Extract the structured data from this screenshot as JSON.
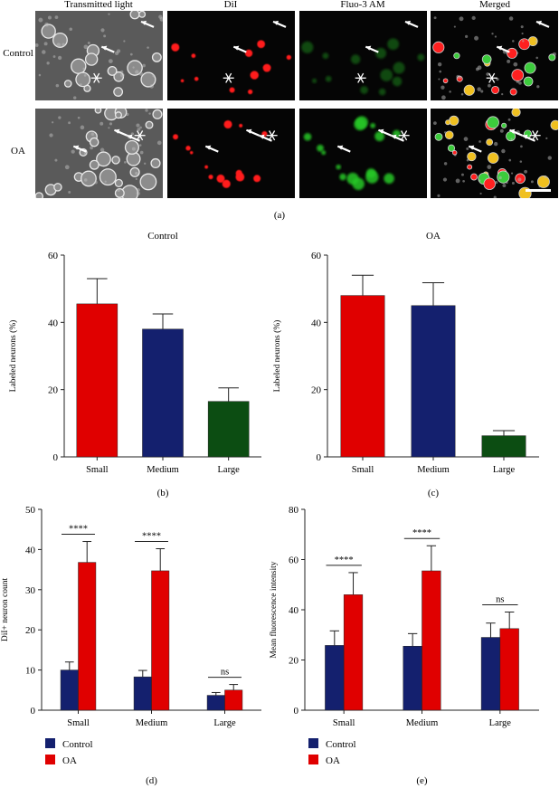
{
  "panel_a": {
    "col_headers": [
      "Transmitted light",
      "DiI",
      "Fluo-3 AM",
      "Merged"
    ],
    "row_labels": [
      "Control",
      "OA"
    ],
    "caption": "(a)"
  },
  "chart_data": [
    {
      "id": "b",
      "type": "bar",
      "title": "Control",
      "ylabel": "Labeled neurons (%)",
      "xlabel": "",
      "caption": "(b)",
      "categories": [
        "Small",
        "Medium",
        "Large"
      ],
      "values": [
        45.5,
        38,
        16.5
      ],
      "errors": [
        7.5,
        4.5,
        4
      ],
      "colors": [
        "#e00000",
        "#14206e",
        "#0c4d12"
      ],
      "ylim": [
        0,
        60
      ],
      "yticks": [
        0,
        20,
        40,
        60
      ],
      "grid": false
    },
    {
      "id": "c",
      "type": "bar",
      "title": "OA",
      "ylabel": "Labeled neurons (%)",
      "xlabel": "",
      "caption": "(c)",
      "categories": [
        "Small",
        "Medium",
        "Large"
      ],
      "values": [
        48,
        45,
        6.3
      ],
      "errors": [
        6,
        6.8,
        1.5
      ],
      "colors": [
        "#e00000",
        "#14206e",
        "#0c4d12"
      ],
      "ylim": [
        0,
        60
      ],
      "yticks": [
        0,
        20,
        40,
        60
      ],
      "grid": false
    },
    {
      "id": "d",
      "type": "bar",
      "title": "",
      "ylabel": "DiI+ neuron count",
      "xlabel": "",
      "caption": "(d)",
      "categories": [
        "Small",
        "Medium",
        "Large"
      ],
      "series": [
        {
          "name": "Control",
          "color": "#14206e",
          "values": [
            10,
            8.3,
            3.7
          ],
          "errors": [
            2,
            1.6,
            0.7
          ]
        },
        {
          "name": "OA",
          "color": "#e00000",
          "values": [
            36.8,
            34.7,
            5
          ],
          "errors": [
            5.2,
            5.5,
            1.4
          ]
        }
      ],
      "significance": [
        "****",
        "****",
        "ns"
      ],
      "ylim": [
        0,
        50
      ],
      "yticks": [
        0,
        10,
        20,
        30,
        40,
        50
      ],
      "legend": "bottom-left",
      "grid": false
    },
    {
      "id": "e",
      "type": "bar",
      "title": "",
      "ylabel": "Mean fluorescence intensity",
      "xlabel": "",
      "caption": "(e)",
      "categories": [
        "Small",
        "Medium",
        "Large"
      ],
      "series": [
        {
          "name": "Control",
          "color": "#14206e",
          "values": [
            25.8,
            25.5,
            29
          ],
          "errors": [
            5.8,
            5,
            5.7
          ]
        },
        {
          "name": "OA",
          "color": "#e00000",
          "values": [
            46,
            55.5,
            32.5
          ],
          "errors": [
            8.8,
            10,
            6.6
          ]
        }
      ],
      "significance": [
        "****",
        "****",
        "ns"
      ],
      "ylim": [
        0,
        80
      ],
      "yticks": [
        0,
        20,
        40,
        60,
        80
      ],
      "legend": "bottom-left",
      "grid": false
    }
  ]
}
